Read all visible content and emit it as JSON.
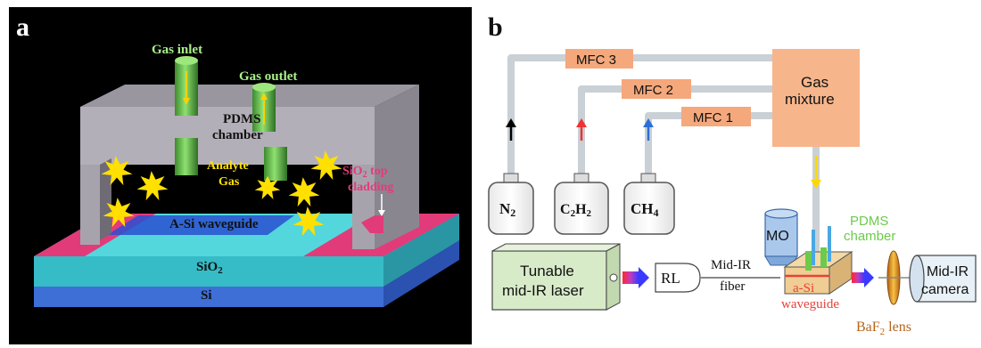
{
  "panel_a": {
    "letter": "a",
    "gas_inlet": "Gas inlet",
    "gas_outlet": "Gas outlet",
    "pdms_line1": "PDMS",
    "pdms_line2": "chamber",
    "analyte_line1": "Analyte",
    "analyte_line2": "Gas",
    "sio2_top_line1": "SiO",
    "sio2_top_sub": "2",
    "sio2_top_line1_rest": " top",
    "sio2_top_line2": "cladding",
    "waveguide": "A-Si waveguide",
    "sio2": "SiO",
    "sio2_sub": "2",
    "si": "Si"
  },
  "panel_b": {
    "letter": "b",
    "mfc3": "MFC 3",
    "mfc2": "MFC 2",
    "mfc1": "MFC 1",
    "gas_mixture_line1": "Gas",
    "gas_mixture_line2": "mixture",
    "n2": "N",
    "n2_sub": "2",
    "c2h2_a": "C",
    "c2h2_sub1": "2",
    "c2h2_b": "H",
    "c2h2_sub2": "2",
    "ch4": "CH",
    "ch4_sub": "4",
    "mo": "MO",
    "pdms_line1": "PDMS",
    "pdms_line2": "chamber",
    "laser_line1": "Tunable",
    "laser_line2": "mid-IR laser",
    "rl": "RL",
    "fiber_line1": "Mid-IR",
    "fiber_line2": "fiber",
    "asi_line1": "a-Si",
    "asi_line2": "waveguide",
    "camera_line1": "Mid-IR",
    "camera_line2": "camera",
    "lens_a": "BaF",
    "lens_sub": "2",
    "lens_b": " lens"
  },
  "colors": {
    "pipe": "#c9d0d6",
    "mfc": "#f4a87c",
    "gas_mixture": "#f7b58b",
    "laser_box": "#d8ebc9",
    "pdms_green": "#6ccb4a",
    "asi_red": "#e8403a",
    "lens_brown": "#b5651d",
    "cyan": "#3fd1d6",
    "pink": "#e23b7a"
  }
}
